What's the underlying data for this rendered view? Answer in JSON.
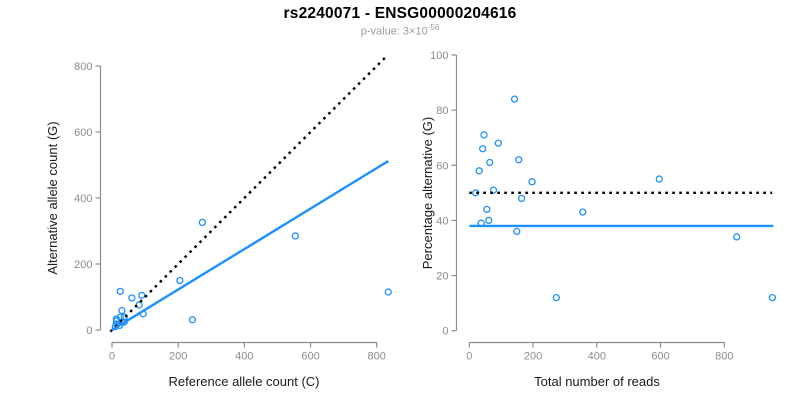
{
  "header": {
    "title": "rs2240071 - ENSG00000204616",
    "subtitle_label": "p-value: 3×10",
    "subtitle_exponent": "-56"
  },
  "colors": {
    "accent_blue": "#1E90FF",
    "axis_gray": "#8c8c8c",
    "tick_label_gray": "#8c8c8c",
    "axis_title_black": "#1a1a1a",
    "dotted_black": "#000000",
    "subtitle_gray": "#999999"
  },
  "chart_data": [
    {
      "type": "scatter",
      "panel": "left",
      "title": "",
      "xlabel": "Reference allele count (C)",
      "ylabel": "Alternative allele count (G)",
      "xlim": [
        0,
        840
      ],
      "ylim": [
        0,
        840
      ],
      "xticks": [
        0,
        200,
        400,
        600,
        800
      ],
      "yticks": [
        0,
        200,
        400,
        600,
        800
      ],
      "grid": false,
      "legend": "none",
      "points": [
        [
          10,
          10
        ],
        [
          13,
          18
        ],
        [
          23,
          14
        ],
        [
          14,
          28
        ],
        [
          13,
          33
        ],
        [
          31,
          24
        ],
        [
          37,
          24
        ],
        [
          25,
          39
        ],
        [
          37,
          39
        ],
        [
          25,
          117
        ],
        [
          30,
          59
        ],
        [
          60,
          97
        ],
        [
          82,
          76
        ],
        [
          90,
          105
        ],
        [
          94,
          49
        ],
        [
          205,
          150
        ],
        [
          243,
          31
        ],
        [
          273,
          326
        ],
        [
          554,
          285
        ],
        [
          835,
          115
        ]
      ],
      "lines": [
        {
          "name": "identity-line",
          "style": "dotted",
          "color": "#000000",
          "x1": -5,
          "y1": -5,
          "x2": 832,
          "y2": 832
        },
        {
          "name": "regression-line",
          "style": "solid",
          "color": "#1E90FF",
          "x1": 0,
          "y1": 0,
          "x2": 835,
          "y2": 512
        }
      ]
    },
    {
      "type": "scatter",
      "panel": "right",
      "title": "",
      "xlabel": "Total number of reads",
      "ylabel": "Percentage alternative (G)",
      "xlim": [
        0,
        960
      ],
      "ylim": [
        0,
        100
      ],
      "xticks": [
        0,
        200,
        400,
        600,
        800
      ],
      "yticks": [
        0,
        20,
        40,
        60,
        80,
        100
      ],
      "grid": false,
      "legend": "none",
      "points": [
        [
          20,
          50
        ],
        [
          31,
          58
        ],
        [
          37,
          39
        ],
        [
          42,
          66
        ],
        [
          46,
          71
        ],
        [
          55,
          44
        ],
        [
          61,
          40
        ],
        [
          64,
          61
        ],
        [
          76,
          51
        ],
        [
          91,
          68
        ],
        [
          142,
          84
        ],
        [
          149,
          36
        ],
        [
          155,
          62
        ],
        [
          164,
          48
        ],
        [
          197,
          54
        ],
        [
          273,
          12
        ],
        [
          356,
          43
        ],
        [
          596,
          55
        ],
        [
          839,
          34
        ],
        [
          951,
          12
        ]
      ],
      "lines": [
        {
          "name": "expected-ratio-line",
          "style": "dotted",
          "color": "#000000",
          "x1": 0,
          "y1": 50,
          "x2": 950,
          "y2": 50
        },
        {
          "name": "mean-percentage-line",
          "style": "solid",
          "color": "#1E90FF",
          "x1": 0,
          "y1": 38,
          "x2": 954,
          "y2": 38
        }
      ]
    }
  ]
}
